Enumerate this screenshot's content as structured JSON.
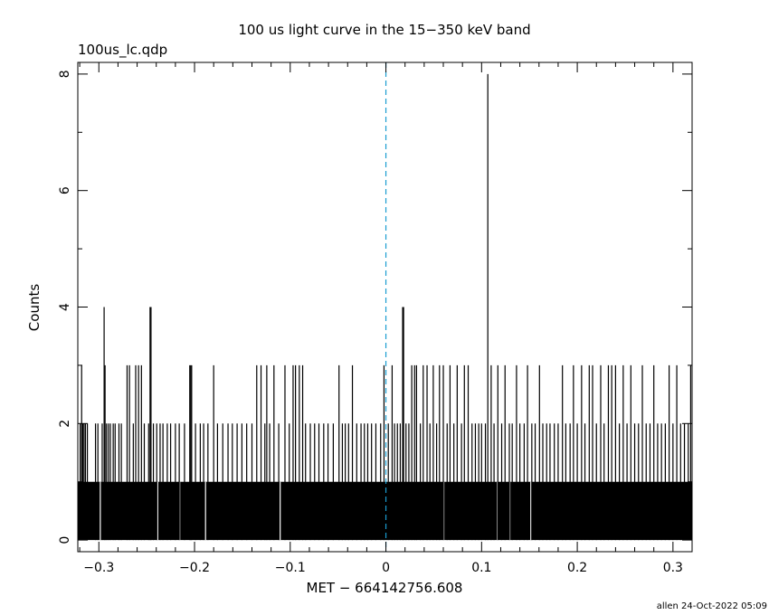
{
  "chart_data": {
    "type": "bar",
    "title": "100 us light curve in the 15−350 keV band",
    "file_label": "100us_lc.qdp",
    "xlabel": "MET − 664142756.608",
    "ylabel": "Counts",
    "xlim": [
      -0.322,
      0.32
    ],
    "ylim": [
      -0.2,
      8.2
    ],
    "x_ticks": [
      {
        "value": -0.3,
        "label": "−0.3"
      },
      {
        "value": -0.2,
        "label": "−0.2"
      },
      {
        "value": -0.1,
        "label": "−0.1"
      },
      {
        "value": 0,
        "label": "0"
      },
      {
        "value": 0.1,
        "label": "0.1"
      },
      {
        "value": 0.2,
        "label": "0.2"
      },
      {
        "value": 0.3,
        "label": "0.3"
      }
    ],
    "y_ticks": [
      {
        "value": 0,
        "label": "0"
      },
      {
        "value": 2,
        "label": "2"
      },
      {
        "value": 4,
        "label": "4"
      },
      {
        "value": 6,
        "label": "6"
      },
      {
        "value": 8,
        "label": "8"
      }
    ],
    "baseline_counts": 1,
    "bin_width": 0.0001,
    "baseline_gaps": [
      -0.2985,
      -0.2385,
      -0.2155,
      -0.1885,
      -0.1105,
      0.0605,
      0.1165,
      0.1295,
      0.1515
    ],
    "spikes": [
      {
        "x": -0.3195,
        "value": 2
      },
      {
        "x": -0.318,
        "value": 3
      },
      {
        "x": -0.3168,
        "value": 2
      },
      {
        "x": -0.3155,
        "value": 2
      },
      {
        "x": -0.314,
        "value": 2
      },
      {
        "x": -0.312,
        "value": 2
      },
      {
        "x": -0.3035,
        "value": 2
      },
      {
        "x": -0.301,
        "value": 2
      },
      {
        "x": -0.2965,
        "value": 2
      },
      {
        "x": -0.2945,
        "value": 4
      },
      {
        "x": -0.2935,
        "value": 3
      },
      {
        "x": -0.292,
        "value": 2
      },
      {
        "x": -0.29,
        "value": 2
      },
      {
        "x": -0.288,
        "value": 2
      },
      {
        "x": -0.285,
        "value": 2
      },
      {
        "x": -0.283,
        "value": 2
      },
      {
        "x": -0.279,
        "value": 2
      },
      {
        "x": -0.2765,
        "value": 2
      },
      {
        "x": -0.2705,
        "value": 3
      },
      {
        "x": -0.268,
        "value": 3
      },
      {
        "x": -0.264,
        "value": 2
      },
      {
        "x": -0.2615,
        "value": 3
      },
      {
        "x": -0.2585,
        "value": 3
      },
      {
        "x": -0.2555,
        "value": 3
      },
      {
        "x": -0.2525,
        "value": 2
      },
      {
        "x": -0.248,
        "value": 2
      },
      {
        "x": -0.2465,
        "value": 4
      },
      {
        "x": -0.2455,
        "value": 4
      },
      {
        "x": -0.243,
        "value": 2
      },
      {
        "x": -0.2395,
        "value": 2
      },
      {
        "x": -0.236,
        "value": 2
      },
      {
        "x": -0.233,
        "value": 2
      },
      {
        "x": -0.2285,
        "value": 2
      },
      {
        "x": -0.225,
        "value": 2
      },
      {
        "x": -0.22,
        "value": 2
      },
      {
        "x": -0.216,
        "value": 2
      },
      {
        "x": -0.2105,
        "value": 2
      },
      {
        "x": -0.205,
        "value": 3
      },
      {
        "x": -0.204,
        "value": 3
      },
      {
        "x": -0.203,
        "value": 3
      },
      {
        "x": -0.199,
        "value": 2
      },
      {
        "x": -0.194,
        "value": 2
      },
      {
        "x": -0.1905,
        "value": 2
      },
      {
        "x": -0.186,
        "value": 2
      },
      {
        "x": -0.18,
        "value": 3
      },
      {
        "x": -0.176,
        "value": 2
      },
      {
        "x": -0.1705,
        "value": 2
      },
      {
        "x": -0.165,
        "value": 2
      },
      {
        "x": -0.1605,
        "value": 2
      },
      {
        "x": -0.1555,
        "value": 2
      },
      {
        "x": -0.1505,
        "value": 2
      },
      {
        "x": -0.1455,
        "value": 2
      },
      {
        "x": -0.14,
        "value": 2
      },
      {
        "x": -0.135,
        "value": 3
      },
      {
        "x": -0.1305,
        "value": 3
      },
      {
        "x": -0.1265,
        "value": 2
      },
      {
        "x": -0.1245,
        "value": 3
      },
      {
        "x": -0.1215,
        "value": 2
      },
      {
        "x": -0.117,
        "value": 3
      },
      {
        "x": -0.112,
        "value": 2
      },
      {
        "x": -0.1055,
        "value": 3
      },
      {
        "x": -0.101,
        "value": 2
      },
      {
        "x": -0.097,
        "value": 3
      },
      {
        "x": -0.0945,
        "value": 3
      },
      {
        "x": -0.0905,
        "value": 3
      },
      {
        "x": -0.087,
        "value": 3
      },
      {
        "x": -0.084,
        "value": 2
      },
      {
        "x": -0.079,
        "value": 2
      },
      {
        "x": -0.0745,
        "value": 2
      },
      {
        "x": -0.07,
        "value": 2
      },
      {
        "x": -0.065,
        "value": 2
      },
      {
        "x": -0.0605,
        "value": 2
      },
      {
        "x": -0.055,
        "value": 2
      },
      {
        "x": -0.049,
        "value": 3
      },
      {
        "x": -0.0455,
        "value": 2
      },
      {
        "x": -0.0425,
        "value": 2
      },
      {
        "x": -0.039,
        "value": 2
      },
      {
        "x": -0.035,
        "value": 3
      },
      {
        "x": -0.0305,
        "value": 2
      },
      {
        "x": -0.026,
        "value": 2
      },
      {
        "x": -0.0225,
        "value": 2
      },
      {
        "x": -0.019,
        "value": 2
      },
      {
        "x": -0.015,
        "value": 2
      },
      {
        "x": -0.0105,
        "value": 2
      },
      {
        "x": -0.0055,
        "value": 2
      },
      {
        "x": -0.002,
        "value": 3
      },
      {
        "x": 0.0025,
        "value": 2
      },
      {
        "x": 0.0065,
        "value": 3
      },
      {
        "x": 0.009,
        "value": 2
      },
      {
        "x": 0.012,
        "value": 2
      },
      {
        "x": 0.015,
        "value": 2
      },
      {
        "x": 0.0175,
        "value": 4
      },
      {
        "x": 0.0185,
        "value": 4
      },
      {
        "x": 0.021,
        "value": 2
      },
      {
        "x": 0.024,
        "value": 2
      },
      {
        "x": 0.027,
        "value": 3
      },
      {
        "x": 0.03,
        "value": 3
      },
      {
        "x": 0.032,
        "value": 3
      },
      {
        "x": 0.036,
        "value": 2
      },
      {
        "x": 0.039,
        "value": 3
      },
      {
        "x": 0.043,
        "value": 3
      },
      {
        "x": 0.046,
        "value": 2
      },
      {
        "x": 0.0495,
        "value": 3
      },
      {
        "x": 0.053,
        "value": 2
      },
      {
        "x": 0.056,
        "value": 3
      },
      {
        "x": 0.06,
        "value": 3
      },
      {
        "x": 0.064,
        "value": 2
      },
      {
        "x": 0.067,
        "value": 3
      },
      {
        "x": 0.071,
        "value": 2
      },
      {
        "x": 0.0745,
        "value": 3
      },
      {
        "x": 0.079,
        "value": 2
      },
      {
        "x": 0.082,
        "value": 3
      },
      {
        "x": 0.086,
        "value": 3
      },
      {
        "x": 0.09,
        "value": 2
      },
      {
        "x": 0.0935,
        "value": 2
      },
      {
        "x": 0.097,
        "value": 2
      },
      {
        "x": 0.1,
        "value": 2
      },
      {
        "x": 0.104,
        "value": 2
      },
      {
        "x": 0.1065,
        "value": 8
      },
      {
        "x": 0.11,
        "value": 3
      },
      {
        "x": 0.113,
        "value": 2
      },
      {
        "x": 0.117,
        "value": 3
      },
      {
        "x": 0.121,
        "value": 2
      },
      {
        "x": 0.1245,
        "value": 3
      },
      {
        "x": 0.129,
        "value": 2
      },
      {
        "x": 0.132,
        "value": 2
      },
      {
        "x": 0.1365,
        "value": 3
      },
      {
        "x": 0.14,
        "value": 2
      },
      {
        "x": 0.1445,
        "value": 2
      },
      {
        "x": 0.148,
        "value": 3
      },
      {
        "x": 0.1525,
        "value": 2
      },
      {
        "x": 0.156,
        "value": 2
      },
      {
        "x": 0.1605,
        "value": 3
      },
      {
        "x": 0.164,
        "value": 2
      },
      {
        "x": 0.168,
        "value": 2
      },
      {
        "x": 0.1715,
        "value": 2
      },
      {
        "x": 0.176,
        "value": 2
      },
      {
        "x": 0.18,
        "value": 2
      },
      {
        "x": 0.1845,
        "value": 3
      },
      {
        "x": 0.188,
        "value": 2
      },
      {
        "x": 0.1925,
        "value": 2
      },
      {
        "x": 0.196,
        "value": 3
      },
      {
        "x": 0.2,
        "value": 2
      },
      {
        "x": 0.2045,
        "value": 3
      },
      {
        "x": 0.208,
        "value": 2
      },
      {
        "x": 0.2125,
        "value": 3
      },
      {
        "x": 0.216,
        "value": 3
      },
      {
        "x": 0.22,
        "value": 2
      },
      {
        "x": 0.2245,
        "value": 3
      },
      {
        "x": 0.228,
        "value": 2
      },
      {
        "x": 0.2325,
        "value": 3
      },
      {
        "x": 0.236,
        "value": 3
      },
      {
        "x": 0.24,
        "value": 3
      },
      {
        "x": 0.244,
        "value": 2
      },
      {
        "x": 0.248,
        "value": 3
      },
      {
        "x": 0.252,
        "value": 2
      },
      {
        "x": 0.256,
        "value": 3
      },
      {
        "x": 0.26,
        "value": 2
      },
      {
        "x": 0.264,
        "value": 2
      },
      {
        "x": 0.268,
        "value": 3
      },
      {
        "x": 0.272,
        "value": 2
      },
      {
        "x": 0.276,
        "value": 2
      },
      {
        "x": 0.28,
        "value": 3
      },
      {
        "x": 0.284,
        "value": 2
      },
      {
        "x": 0.288,
        "value": 2
      },
      {
        "x": 0.292,
        "value": 2
      },
      {
        "x": 0.296,
        "value": 3
      },
      {
        "x": 0.3,
        "value": 2
      },
      {
        "x": 0.304,
        "value": 3
      },
      {
        "x": 0.308,
        "value": 2
      },
      {
        "x": 0.312,
        "value": 2
      },
      {
        "x": 0.316,
        "value": 2
      },
      {
        "x": 0.3185,
        "value": 3
      }
    ],
    "reference_line": {
      "x": 0,
      "style": "dashed",
      "color": "#1a9cd0"
    },
    "bar_color": "#000000",
    "grid": false,
    "legend": "none"
  },
  "footer": "allen 24-Oct-2022 05:09"
}
